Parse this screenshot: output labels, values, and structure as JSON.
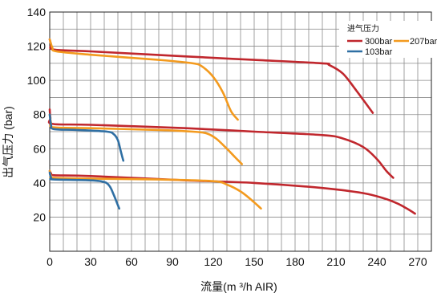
{
  "chart_data": {
    "type": "line",
    "xlabel": "流量(m ³/h AIR)",
    "ylabel": "出气压力 (bar)",
    "xlim": [
      0,
      280
    ],
    "ylim": [
      0,
      140
    ],
    "x_ticks": [
      "0",
      "30",
      "60",
      "90",
      "120",
      "150",
      "180",
      "210",
      "240",
      "270"
    ],
    "y_ticks": [
      "20",
      "40",
      "60",
      "80",
      "100",
      "120",
      "140"
    ],
    "grid": true,
    "legend": {
      "title": "进气压力",
      "placement": "top-right",
      "entries": [
        {
          "name": "300bar",
          "color": "#c0272d"
        },
        {
          "name": "207bar",
          "color": "#f39a1e"
        },
        {
          "name": "103bar",
          "color": "#2f6fa3"
        }
      ]
    },
    "series": [
      {
        "name": "300bar",
        "color": "#c0272d",
        "group": "high",
        "points": [
          [
            0,
            124
          ],
          [
            1,
            121
          ],
          [
            3,
            118
          ],
          [
            30,
            117
          ],
          [
            100,
            114
          ],
          [
            150,
            112
          ],
          [
            200,
            110
          ],
          [
            205,
            109
          ],
          [
            215,
            104
          ],
          [
            225,
            94
          ],
          [
            237,
            81
          ]
        ]
      },
      {
        "name": "207bar",
        "color": "#f39a1e",
        "group": "high",
        "points": [
          [
            0,
            124
          ],
          [
            2,
            119
          ],
          [
            5,
            117
          ],
          [
            30,
            115
          ],
          [
            80,
            112
          ],
          [
            105,
            110
          ],
          [
            112,
            108
          ],
          [
            120,
            102
          ],
          [
            127,
            93
          ],
          [
            133,
            82
          ],
          [
            138,
            77
          ]
        ]
      },
      {
        "name": "300bar",
        "color": "#c0272d",
        "group": "mid",
        "points": [
          [
            0,
            83
          ],
          [
            0.5,
            78
          ],
          [
            2,
            74.5
          ],
          [
            30,
            74
          ],
          [
            100,
            72
          ],
          [
            150,
            70
          ],
          [
            200,
            68
          ],
          [
            215,
            66
          ],
          [
            230,
            61
          ],
          [
            240,
            54
          ],
          [
            247,
            47
          ],
          [
            252,
            43
          ]
        ]
      },
      {
        "name": "207bar",
        "color": "#f39a1e",
        "group": "mid",
        "points": [
          [
            0,
            80
          ],
          [
            1,
            75
          ],
          [
            3,
            72.5
          ],
          [
            30,
            72
          ],
          [
            80,
            71
          ],
          [
            105,
            70
          ],
          [
            115,
            69
          ],
          [
            122,
            66
          ],
          [
            130,
            60
          ],
          [
            136,
            55
          ],
          [
            141,
            51
          ]
        ]
      },
      {
        "name": "103bar",
        "color": "#2f6fa3",
        "group": "mid",
        "points": [
          [
            0,
            80
          ],
          [
            1,
            74
          ],
          [
            3,
            71.5
          ],
          [
            20,
            71
          ],
          [
            42,
            70
          ],
          [
            47,
            68.5
          ],
          [
            50,
            65
          ],
          [
            52,
            59
          ],
          [
            54,
            53
          ]
        ]
      },
      {
        "name": "300bar",
        "color": "#c0272d",
        "group": "low",
        "points": [
          [
            0,
            47
          ],
          [
            1,
            45.5
          ],
          [
            3,
            44.5
          ],
          [
            30,
            44
          ],
          [
            100,
            41.5
          ],
          [
            150,
            40
          ],
          [
            200,
            37
          ],
          [
            230,
            34
          ],
          [
            245,
            31
          ],
          [
            255,
            28
          ],
          [
            262,
            25
          ],
          [
            268,
            22
          ]
        ]
      },
      {
        "name": "207bar",
        "color": "#f39a1e",
        "group": "low",
        "points": [
          [
            0,
            47
          ],
          [
            1,
            44
          ],
          [
            3,
            43
          ],
          [
            30,
            42.5
          ],
          [
            80,
            42
          ],
          [
            120,
            41
          ],
          [
            130,
            39
          ],
          [
            140,
            35
          ],
          [
            148,
            30
          ],
          [
            155,
            25
          ]
        ]
      },
      {
        "name": "103bar",
        "color": "#2f6fa3",
        "group": "low",
        "points": [
          [
            0,
            46
          ],
          [
            1,
            43
          ],
          [
            3,
            42
          ],
          [
            30,
            41.5
          ],
          [
            40,
            40.5
          ],
          [
            44,
            38
          ],
          [
            47,
            33
          ],
          [
            49,
            29
          ],
          [
            51,
            25
          ]
        ]
      }
    ]
  }
}
